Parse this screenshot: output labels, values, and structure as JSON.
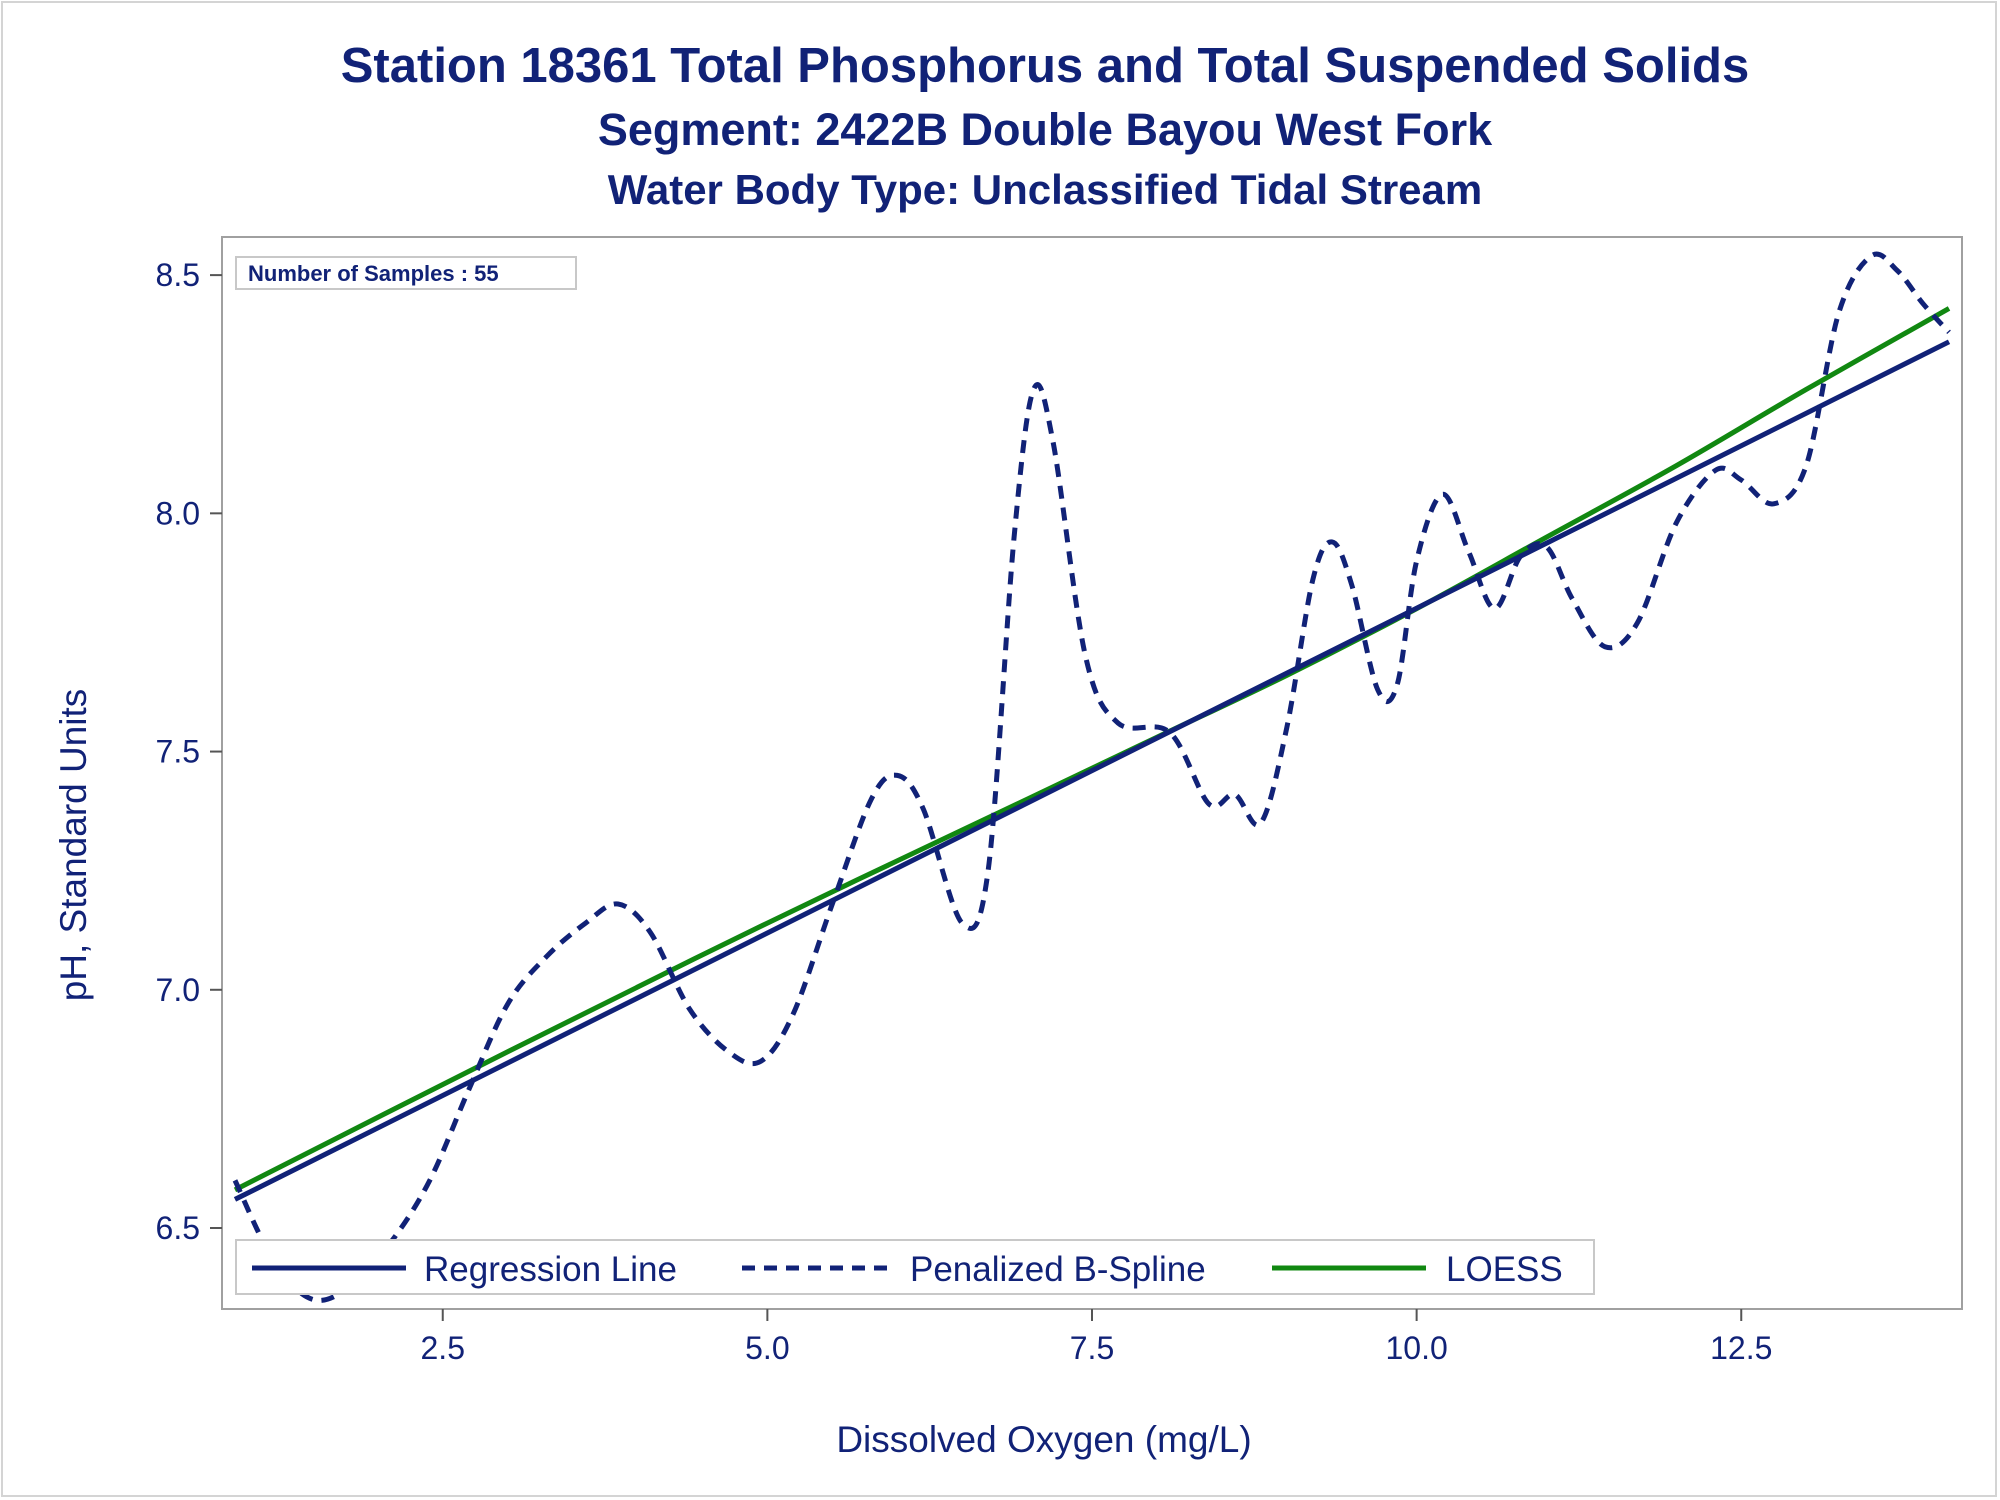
{
  "titles": {
    "main": "Station 18361  Total Phosphorus and Total Suspended Solids",
    "segment": "Segment: 2422B  Double Bayou West Fork",
    "water_body": "Water Body Type: Unclassified Tidal Stream"
  },
  "sample_box": {
    "text": "Number of Samples : 55"
  },
  "colors": {
    "text": "#112277",
    "regression": "#112277",
    "spline": "#112277",
    "loess": "#118811",
    "frame": "#a0a0a0"
  },
  "chart_data": {
    "type": "line",
    "xlabel": "Dissolved Oxygen (mg/L)",
    "ylabel": "pH, Standard Units",
    "xlim": [
      0.8,
      14.2
    ],
    "ylim": [
      6.33,
      8.58
    ],
    "xticks": [
      2.5,
      5.0,
      7.5,
      10.0,
      12.5
    ],
    "xtick_labels": [
      "2.5",
      "5.0",
      "7.5",
      "10.0",
      "12.5"
    ],
    "yticks": [
      6.5,
      7.0,
      7.5,
      8.0,
      8.5
    ],
    "ytick_labels": [
      "6.5",
      "7.0",
      "7.5",
      "8.0",
      "8.5"
    ],
    "grid": false,
    "legend_position": "bottom-left",
    "series": [
      {
        "name": "Regression Line",
        "style": "solid",
        "color": "#112277",
        "x": [
          0.9,
          14.1
        ],
        "y": [
          6.56,
          8.36
        ]
      },
      {
        "name": "Penalized B-Spline",
        "style": "dashed",
        "color": "#112277",
        "x": [
          0.9,
          1.2,
          1.5,
          1.8,
          2.1,
          2.4,
          2.7,
          3.0,
          3.3,
          3.6,
          3.85,
          4.1,
          4.4,
          4.7,
          4.95,
          5.2,
          5.5,
          5.8,
          6.0,
          6.2,
          6.5,
          6.7,
          6.9,
          7.05,
          7.2,
          7.45,
          7.7,
          8.1,
          8.4,
          8.6,
          8.8,
          9.0,
          9.2,
          9.35,
          9.5,
          9.7,
          9.85,
          10.0,
          10.2,
          10.4,
          10.6,
          10.8,
          11.0,
          11.2,
          11.45,
          11.7,
          12.0,
          12.3,
          12.5,
          12.75,
          13.0,
          13.25,
          13.5,
          13.7,
          13.9,
          14.1
        ],
        "y": [
          6.6,
          6.43,
          6.35,
          6.38,
          6.47,
          6.6,
          6.79,
          6.97,
          7.07,
          7.14,
          7.18,
          7.12,
          6.96,
          6.87,
          6.85,
          6.95,
          7.18,
          7.4,
          7.45,
          7.38,
          7.14,
          7.25,
          7.95,
          8.26,
          8.15,
          7.7,
          7.56,
          7.54,
          7.39,
          7.41,
          7.35,
          7.55,
          7.86,
          7.94,
          7.85,
          7.63,
          7.64,
          7.9,
          8.04,
          7.92,
          7.8,
          7.91,
          7.93,
          7.82,
          7.72,
          7.77,
          7.98,
          8.09,
          8.07,
          8.02,
          8.1,
          8.42,
          8.54,
          8.51,
          8.44,
          8.38
        ]
      },
      {
        "name": "LOESS",
        "style": "solid",
        "color": "#118811",
        "x": [
          0.9,
          3.0,
          5.0,
          7.0,
          8.0,
          9.0,
          10.0,
          11.0,
          12.0,
          13.0,
          14.1
        ],
        "y": [
          6.58,
          6.87,
          7.14,
          7.4,
          7.53,
          7.66,
          7.8,
          7.95,
          8.1,
          8.26,
          8.43
        ]
      }
    ]
  }
}
